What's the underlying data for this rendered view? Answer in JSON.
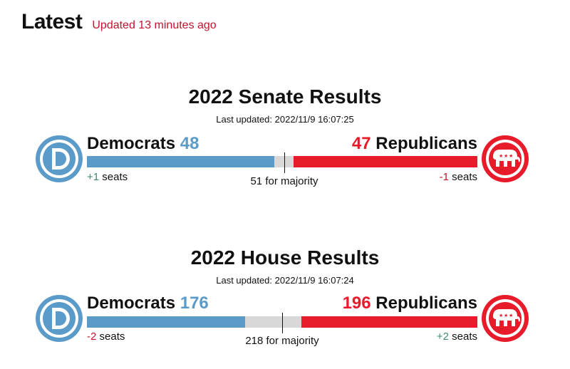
{
  "header": {
    "title": "Latest",
    "updated": "Updated 13 minutes ago"
  },
  "colors": {
    "democrat": "#5b9bc9",
    "republican": "#e81b2a",
    "undecided": "#d8d8d8",
    "update_text": "#c8102e",
    "positive_change": "#3c8a6e"
  },
  "icons": {
    "democrat": "democrat-donkey-d-logo-icon",
    "republican": "republican-elephant-logo-icon"
  },
  "senate": {
    "title": "2022 Senate Results",
    "last_updated_label": "Last updated:",
    "last_updated_value": "2022/11/9 16:07:25",
    "dem_label": "Democrats",
    "dem_seats": "48",
    "rep_label": "Republicans",
    "rep_seats": "47",
    "dem_change_value": "+1",
    "rep_change_value": "-1",
    "seats_word": "seats",
    "majority_label": "51 for majority",
    "total_seats": 100,
    "majority": 51,
    "dem_value": 48,
    "rep_value": 47
  },
  "house": {
    "title": "2022 House Results",
    "last_updated_label": "Last updated:",
    "last_updated_value": "2022/11/9 16:07:24",
    "dem_label": "Democrats",
    "dem_seats": "176",
    "rep_label": "Republicans",
    "rep_seats": "196",
    "dem_change_value": "-2",
    "rep_change_value": "+2",
    "seats_word": "seats",
    "majority_label": "218 for majority",
    "total_seats": 435,
    "majority": 218,
    "dem_value": 176,
    "rep_value": 196
  }
}
